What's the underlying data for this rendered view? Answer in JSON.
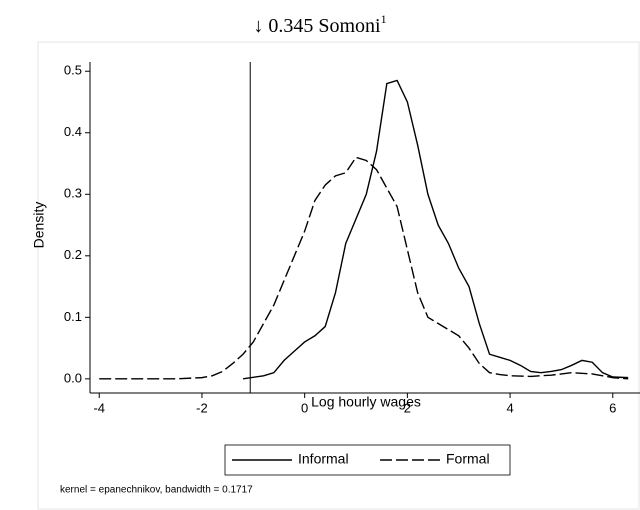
{
  "chart_data": {
    "type": "line",
    "title": "↓ 0.345 Somoni",
    "title_superscript": "1",
    "x_label": "Log hourly wages",
    "y_label": "Density",
    "note": "kernel = epanechnikov, bandwidth = 0.1717",
    "xlim": [
      -4.18,
      6.53
    ],
    "ylim": [
      -0.023,
      0.515
    ],
    "xticks": [
      -4,
      -2,
      0,
      2,
      4,
      6
    ],
    "yticks": [
      {
        "value": 0,
        "label": "0.0"
      },
      0.1,
      0.2,
      0.3,
      0.4,
      0.5
    ],
    "vline": -1.06,
    "series": [
      {
        "name": "Informal",
        "color": "#000000",
        "dash": "solid",
        "x": [
          -1.2,
          -0.8,
          -0.6,
          -0.4,
          -0.2,
          0,
          0.2,
          0.4,
          0.6,
          0.8,
          1.0,
          1.2,
          1.4,
          1.6,
          1.8,
          2.0,
          2.2,
          2.4,
          2.6,
          2.8,
          3.0,
          3.2,
          3.4,
          3.6,
          3.8,
          4.0,
          4.2,
          4.4,
          4.6,
          4.8,
          5.0,
          5.2,
          5.4,
          5.6,
          5.8,
          6.0,
          6.3
        ],
        "values": [
          0.0,
          0.005,
          0.01,
          0.03,
          0.045,
          0.06,
          0.07,
          0.085,
          0.14,
          0.22,
          0.26,
          0.3,
          0.37,
          0.48,
          0.485,
          0.45,
          0.38,
          0.3,
          0.25,
          0.22,
          0.18,
          0.15,
          0.09,
          0.04,
          0.035,
          0.03,
          0.022,
          0.012,
          0.01,
          0.012,
          0.015,
          0.022,
          0.03,
          0.027,
          0.01,
          0.003,
          0.002
        ]
      },
      {
        "name": "Formal",
        "color": "#000000",
        "dash": "dashed",
        "x": [
          -4.0,
          -3.5,
          -3.0,
          -2.5,
          -2.0,
          -1.8,
          -1.6,
          -1.4,
          -1.2,
          -1.0,
          -0.8,
          -0.6,
          -0.4,
          -0.2,
          0,
          0.2,
          0.4,
          0.6,
          0.8,
          1.0,
          1.2,
          1.4,
          1.6,
          1.8,
          2.0,
          2.2,
          2.4,
          2.6,
          2.8,
          3.0,
          3.2,
          3.4,
          3.6,
          3.8,
          4.0,
          4.4,
          4.8,
          5.2,
          5.6,
          6.0,
          6.3
        ],
        "values": [
          0.0,
          0.0,
          0.0,
          0.0,
          0.002,
          0.005,
          0.012,
          0.025,
          0.04,
          0.06,
          0.09,
          0.12,
          0.16,
          0.2,
          0.24,
          0.29,
          0.315,
          0.33,
          0.335,
          0.36,
          0.355,
          0.34,
          0.31,
          0.28,
          0.21,
          0.14,
          0.1,
          0.09,
          0.08,
          0.07,
          0.05,
          0.025,
          0.01,
          0.007,
          0.005,
          0.004,
          0.006,
          0.01,
          0.008,
          0.002,
          0.0
        ]
      }
    ]
  }
}
